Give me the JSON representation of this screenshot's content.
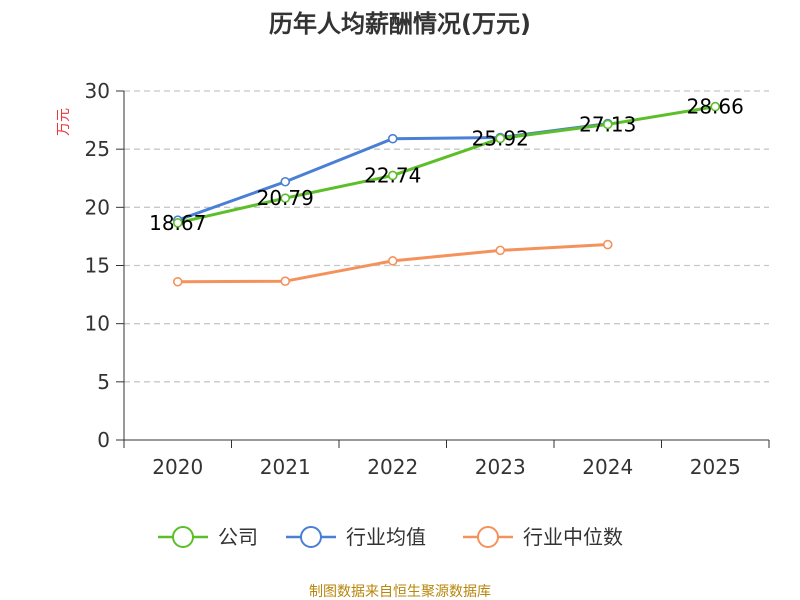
{
  "chart_data": {
    "type": "line",
    "title": "历年人均薪酬情况(万元)",
    "xlabel": "",
    "ylabel": "万元",
    "categories": [
      "2020",
      "2021",
      "2022",
      "2023",
      "2024",
      "2025"
    ],
    "ylim": [
      0,
      30
    ],
    "yticks": [
      0,
      5,
      10,
      15,
      20,
      25,
      30
    ],
    "grid": true,
    "legend_position": "bottom",
    "series": [
      {
        "name": "公司",
        "color": "#5cbf2a",
        "values": [
          18.67,
          20.79,
          22.74,
          25.92,
          27.13,
          28.66
        ],
        "labels": [
          "18.67",
          "20.79",
          "22.74",
          "25.92",
          "27.13",
          "28.66"
        ]
      },
      {
        "name": "行业均值",
        "color": "#4a7fd6",
        "values": [
          18.9,
          22.2,
          25.9,
          26.0,
          27.2,
          null
        ]
      },
      {
        "name": "行业中位数",
        "color": "#f5925c",
        "values": [
          13.6,
          13.65,
          15.4,
          16.3,
          16.8,
          null
        ]
      }
    ]
  },
  "source": "制图数据来自恒生聚源数据库"
}
